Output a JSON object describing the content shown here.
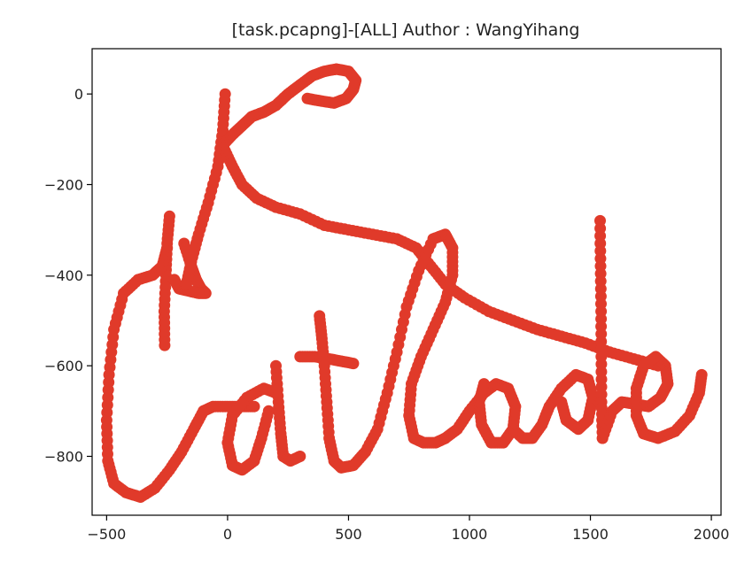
{
  "chart_data": {
    "type": "scatter",
    "title": "[task.pcapng]-[ALL] Author : WangYihang",
    "xlabel": "",
    "ylabel": "",
    "xlim": [
      -560,
      2040
    ],
    "ylim": [
      -930,
      100
    ],
    "xticks": [
      -500,
      0,
      500,
      1000,
      1500,
      2000
    ],
    "yticks": [
      0,
      -200,
      -400,
      -600,
      -800
    ],
    "xtick_labels": [
      "−500",
      "0",
      "500",
      "1000",
      "1500",
      "2000"
    ],
    "ytick_labels": [
      "0",
      "−200",
      "−400",
      "−600",
      "−800"
    ],
    "grid": false,
    "marker_color": "#e03a2a",
    "series": [
      {
        "strokes": [
          [
            [
              -240,
              -270
            ],
            [
              -250,
              -330
            ],
            [
              -255,
              -400
            ],
            [
              -262,
              -480
            ],
            [
              -260,
              -555
            ]
          ],
          [
            [
              -250,
              -340
            ],
            [
              -270,
              -380
            ],
            [
              -310,
              -400
            ],
            [
              -370,
              -410
            ],
            [
              -430,
              -440
            ],
            [
              -470,
              -520
            ],
            [
              -490,
              -620
            ],
            [
              -500,
              -720
            ],
            [
              -495,
              -810
            ],
            [
              -470,
              -860
            ],
            [
              -420,
              -880
            ],
            [
              -360,
              -890
            ],
            [
              -300,
              -870
            ],
            [
              -240,
              -830
            ],
            [
              -190,
              -790
            ],
            [
              -140,
              -740
            ],
            [
              -100,
              -700
            ],
            [
              -60,
              -690
            ],
            [
              0,
              -690
            ],
            [
              60,
              -690
            ],
            [
              110,
              -690
            ]
          ],
          [
            [
              -180,
              -330
            ],
            [
              -150,
              -380
            ],
            [
              -130,
              -410
            ],
            [
              -110,
              -430
            ],
            [
              -90,
              -440
            ],
            [
              -120,
              -440
            ],
            [
              -160,
              -435
            ],
            [
              -200,
              -430
            ],
            [
              -220,
              -410
            ]
          ],
          [
            [
              -10,
              0
            ],
            [
              -20,
              -80
            ],
            [
              -40,
              -160
            ],
            [
              -80,
              -240
            ],
            [
              -120,
              -310
            ],
            [
              -150,
              -370
            ],
            [
              -170,
              -420
            ]
          ],
          [
            [
              -15,
              -110
            ],
            [
              20,
              -90
            ],
            [
              60,
              -70
            ],
            [
              100,
              -50
            ],
            [
              150,
              -40
            ],
            [
              200,
              -25
            ],
            [
              250,
              0
            ],
            [
              300,
              20
            ],
            [
              350,
              40
            ],
            [
              400,
              50
            ],
            [
              450,
              55
            ],
            [
              500,
              50
            ],
            [
              530,
              30
            ],
            [
              520,
              10
            ],
            [
              490,
              -10
            ],
            [
              440,
              -20
            ],
            [
              380,
              -15
            ],
            [
              330,
              -10
            ]
          ],
          [
            [
              -15,
              -120
            ],
            [
              20,
              -160
            ],
            [
              60,
              -200
            ],
            [
              120,
              -230
            ],
            [
              200,
              -250
            ],
            [
              300,
              -265
            ],
            [
              400,
              -290
            ],
            [
              500,
              -300
            ],
            [
              600,
              -310
            ],
            [
              700,
              -320
            ],
            [
              780,
              -340
            ],
            [
              840,
              -380
            ],
            [
              900,
              -420
            ],
            [
              980,
              -450
            ],
            [
              1080,
              -480
            ],
            [
              1180,
              -500
            ],
            [
              1280,
              -520
            ],
            [
              1380,
              -535
            ],
            [
              1480,
              -550
            ],
            [
              1580,
              -570
            ],
            [
              1680,
              -585
            ],
            [
              1780,
              -600
            ]
          ],
          [
            [
              170,
              -700
            ],
            [
              140,
              -760
            ],
            [
              110,
              -810
            ],
            [
              60,
              -830
            ],
            [
              20,
              -820
            ],
            [
              0,
              -770
            ],
            [
              20,
              -710
            ],
            [
              80,
              -670
            ],
            [
              150,
              -650
            ],
            [
              200,
              -660
            ]
          ],
          [
            [
              200,
              -600
            ],
            [
              210,
              -680
            ],
            [
              220,
              -750
            ],
            [
              230,
              -800
            ],
            [
              260,
              -810
            ],
            [
              300,
              -800
            ]
          ],
          [
            [
              300,
              -580
            ],
            [
              360,
              -580
            ],
            [
              420,
              -585
            ],
            [
              470,
              -590
            ],
            [
              520,
              -595
            ]
          ],
          [
            [
              380,
              -490
            ],
            [
              390,
              -540
            ],
            [
              400,
              -600
            ],
            [
              410,
              -680
            ],
            [
              420,
              -760
            ],
            [
              440,
              -810
            ],
            [
              470,
              -825
            ]
          ],
          [
            [
              470,
              -825
            ],
            [
              520,
              -820
            ],
            [
              570,
              -790
            ],
            [
              620,
              -740
            ],
            [
              660,
              -660
            ],
            [
              700,
              -570
            ],
            [
              740,
              -470
            ],
            [
              790,
              -390
            ],
            [
              850,
              -320
            ],
            [
              900,
              -310
            ],
            [
              930,
              -340
            ],
            [
              930,
              -400
            ],
            [
              900,
              -460
            ],
            [
              850,
              -520
            ],
            [
              800,
              -580
            ],
            [
              760,
              -640
            ],
            [
              750,
              -710
            ],
            [
              770,
              -760
            ],
            [
              810,
              -770
            ],
            [
              860,
              -770
            ],
            [
              900,
              -760
            ]
          ],
          [
            [
              900,
              -760
            ],
            [
              950,
              -740
            ],
            [
              1000,
              -700
            ],
            [
              1060,
              -660
            ],
            [
              1110,
              -640
            ],
            [
              1160,
              -650
            ],
            [
              1190,
              -690
            ],
            [
              1180,
              -740
            ],
            [
              1140,
              -770
            ],
            [
              1090,
              -770
            ],
            [
              1050,
              -730
            ],
            [
              1040,
              -680
            ],
            [
              1060,
              -640
            ]
          ],
          [
            [
              1180,
              -740
            ],
            [
              1220,
              -760
            ],
            [
              1260,
              -760
            ],
            [
              1300,
              -730
            ],
            [
              1330,
              -690
            ],
            [
              1380,
              -650
            ],
            [
              1440,
              -620
            ],
            [
              1490,
              -630
            ],
            [
              1510,
              -670
            ],
            [
              1490,
              -720
            ],
            [
              1450,
              -740
            ],
            [
              1400,
              -720
            ],
            [
              1380,
              -680
            ]
          ],
          [
            [
              1540,
              -280
            ],
            [
              1542,
              -380
            ],
            [
              1544,
              -480
            ],
            [
              1545,
              -580
            ],
            [
              1546,
              -680
            ],
            [
              1550,
              -760
            ]
          ],
          [
            [
              1550,
              -760
            ],
            [
              1590,
              -700
            ],
            [
              1630,
              -680
            ],
            [
              1690,
              -685
            ],
            [
              1740,
              -690
            ],
            [
              1790,
              -670
            ],
            [
              1820,
              -640
            ],
            [
              1810,
              -600
            ],
            [
              1770,
              -580
            ],
            [
              1720,
              -600
            ],
            [
              1690,
              -650
            ],
            [
              1690,
              -710
            ],
            [
              1720,
              -750
            ],
            [
              1780,
              -760
            ],
            [
              1850,
              -745
            ],
            [
              1910,
              -710
            ],
            [
              1950,
              -660
            ],
            [
              1960,
              -620
            ]
          ]
        ]
      }
    ]
  }
}
